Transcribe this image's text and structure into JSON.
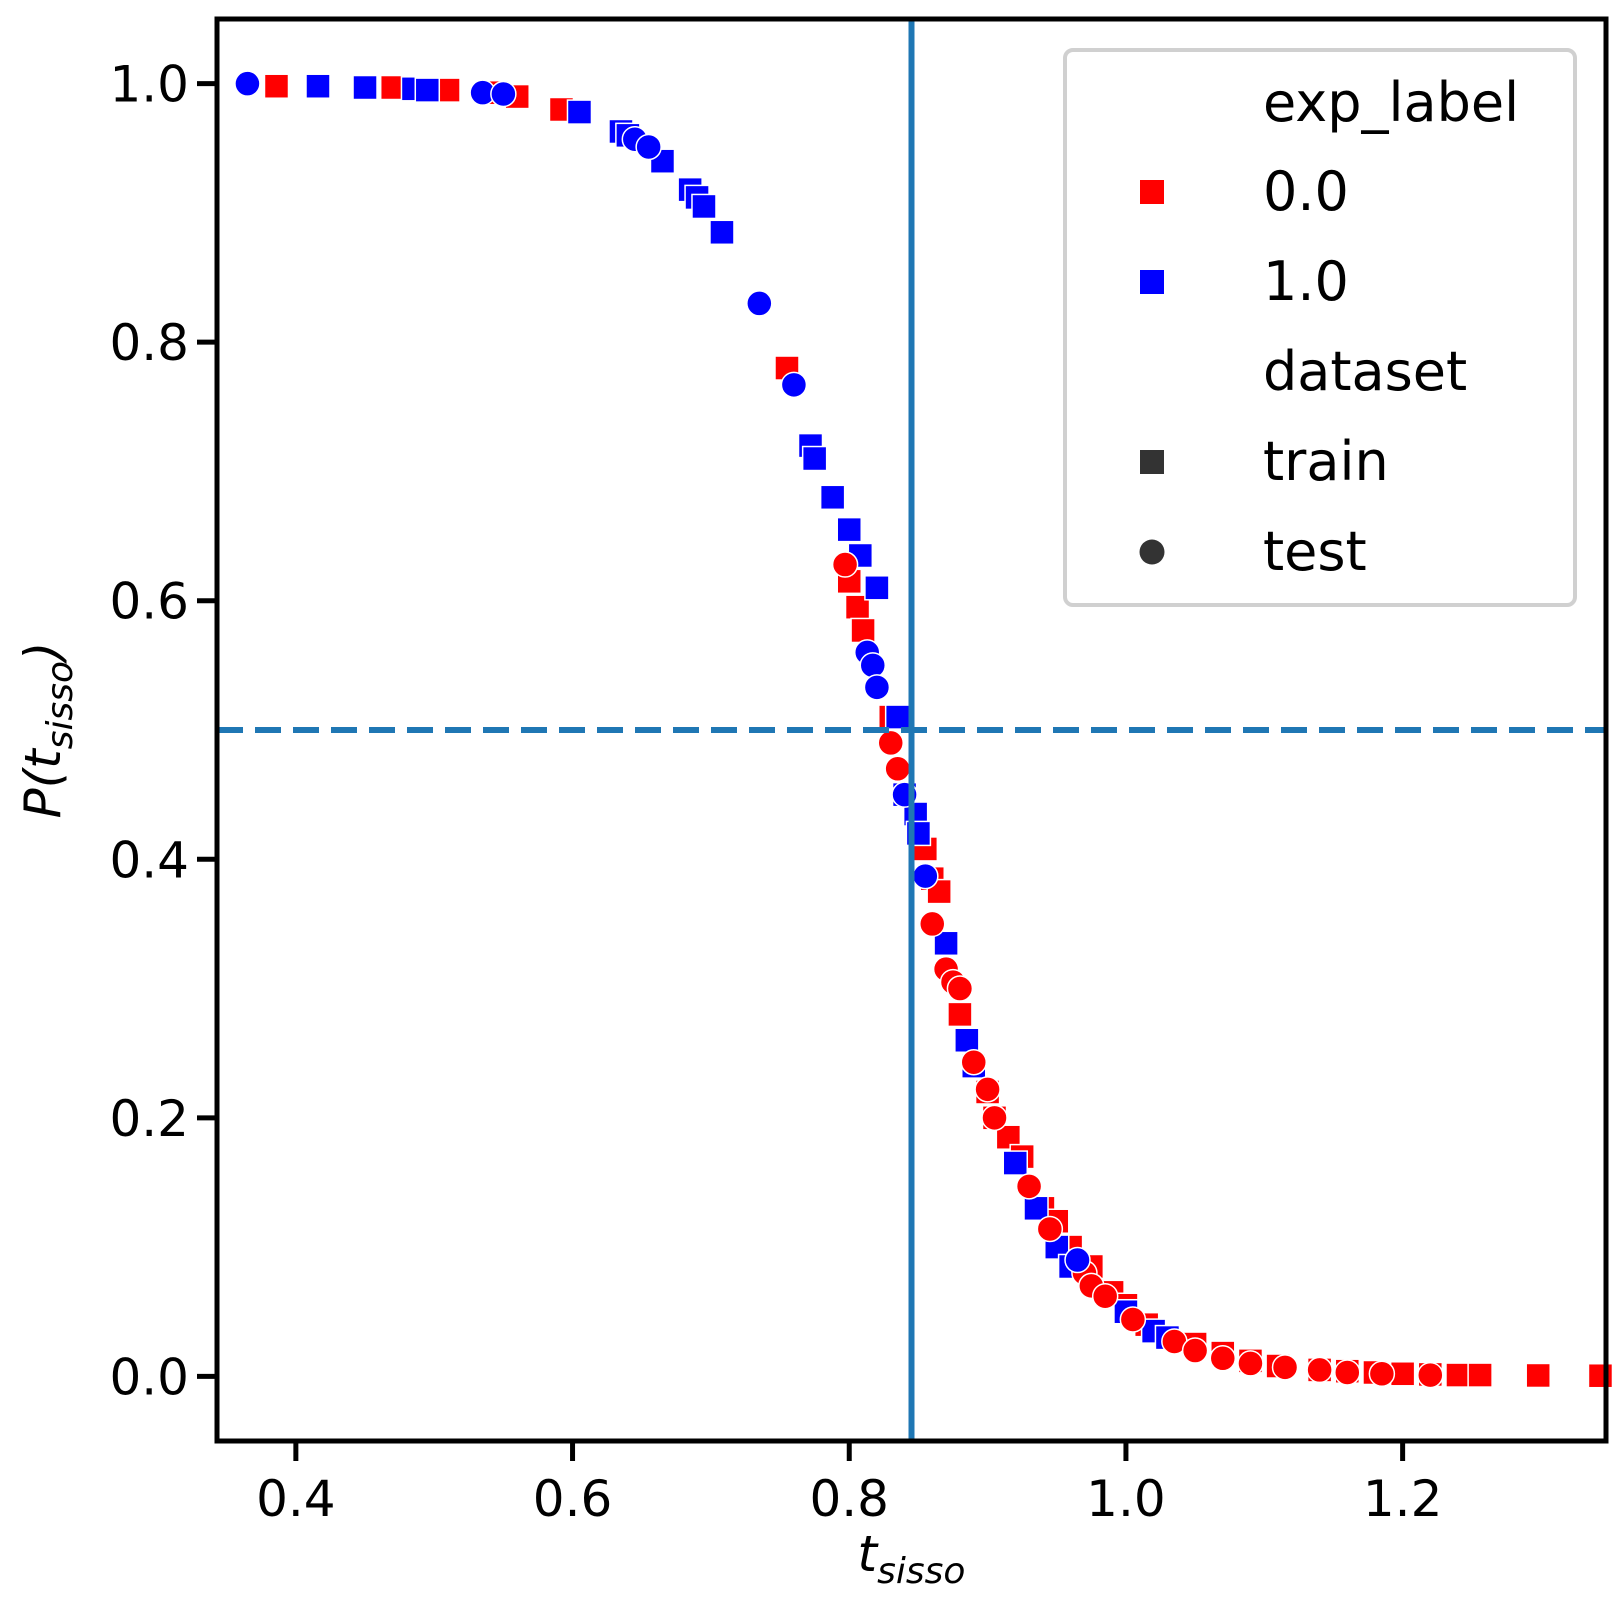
{
  "chart_data": {
    "type": "scatter",
    "xlabel": "t",
    "xlabel_sub": "sisso",
    "ylabel": "P(t",
    "ylabel_sub": "sisso",
    "ylabel_close": ")",
    "xlim": [
      0.343,
      1.347
    ],
    "ylim": [
      -0.05,
      1.05
    ],
    "x_ticks": [
      {
        "value": 0.4,
        "label": "0.4"
      },
      {
        "value": 0.6,
        "label": "0.6"
      },
      {
        "value": 0.8,
        "label": "0.8"
      },
      {
        "value": 1.0,
        "label": "1.0"
      },
      {
        "value": 1.2,
        "label": "1.2"
      }
    ],
    "y_ticks": [
      {
        "value": 0.0,
        "label": "0.0"
      },
      {
        "value": 0.2,
        "label": "0.2"
      },
      {
        "value": 0.4,
        "label": "0.4"
      },
      {
        "value": 0.6,
        "label": "0.6"
      },
      {
        "value": 0.8,
        "label": "0.8"
      },
      {
        "value": 1.0,
        "label": "1.0"
      }
    ],
    "grid": false,
    "vline": {
      "x": 0.845,
      "color": "#1f77b4",
      "style": "solid"
    },
    "hline": {
      "y": 0.5,
      "color": "#1f77b4",
      "style": "dashed"
    },
    "legend": {
      "position": "top-right",
      "hue_title": "exp_label",
      "hue_entries": [
        {
          "label": "0.0",
          "color": "#ff0000"
        },
        {
          "label": "1.0",
          "color": "#0000ff"
        }
      ],
      "style_title": "dataset",
      "style_entries": [
        {
          "label": "train",
          "marker": "square"
        },
        {
          "label": "test",
          "marker": "circle"
        }
      ]
    },
    "series": [
      {
        "exp_label": "0.0",
        "dataset": "train",
        "color": "#ff0000",
        "marker": "square",
        "x": [
          0.386,
          0.47,
          0.51,
          0.545,
          0.56,
          0.592,
          0.755,
          0.8,
          0.806,
          0.81,
          0.83,
          0.855,
          0.86,
          0.865,
          0.88,
          0.885,
          0.9,
          0.905,
          0.915,
          0.925,
          0.94,
          0.95,
          0.96,
          0.975,
          0.99,
          1.0,
          1.015,
          1.03,
          1.05,
          1.07,
          1.09,
          1.11,
          1.14,
          1.16,
          1.18,
          1.2,
          1.22,
          1.24,
          1.256,
          1.298,
          1.343
        ],
        "y": [
          0.998,
          0.997,
          0.995,
          0.993,
          0.99,
          0.98,
          0.78,
          0.615,
          0.595,
          0.577,
          0.51,
          0.408,
          0.385,
          0.375,
          0.28,
          0.26,
          0.22,
          0.2,
          0.185,
          0.17,
          0.13,
          0.12,
          0.1,
          0.085,
          0.065,
          0.055,
          0.04,
          0.03,
          0.025,
          0.018,
          0.012,
          0.008,
          0.005,
          0.004,
          0.003,
          0.002,
          0.0015,
          0.001,
          0.001,
          0.0007,
          0.0005
        ]
      },
      {
        "exp_label": "1.0",
        "dataset": "train",
        "color": "#0000ff",
        "marker": "square",
        "x": [
          0.416,
          0.45,
          0.485,
          0.495,
          0.605,
          0.635,
          0.64,
          0.665,
          0.685,
          0.69,
          0.695,
          0.708,
          0.772,
          0.775,
          0.788,
          0.8,
          0.808,
          0.82,
          0.835,
          0.84,
          0.848,
          0.85,
          0.87,
          0.885,
          0.89,
          0.92,
          0.935,
          0.95,
          0.96,
          1.0,
          1.02,
          1.03
        ],
        "y": [
          0.998,
          0.997,
          0.996,
          0.995,
          0.978,
          0.963,
          0.96,
          0.94,
          0.918,
          0.912,
          0.905,
          0.885,
          0.72,
          0.71,
          0.68,
          0.655,
          0.635,
          0.61,
          0.51,
          0.45,
          0.435,
          0.42,
          0.335,
          0.26,
          0.24,
          0.165,
          0.13,
          0.1,
          0.085,
          0.05,
          0.035,
          0.03
        ]
      },
      {
        "exp_label": "0.0",
        "dataset": "test",
        "color": "#ff0000",
        "marker": "circle",
        "x": [
          0.797,
          0.83,
          0.835,
          0.86,
          0.87,
          0.875,
          0.88,
          0.89,
          0.9,
          0.905,
          0.93,
          0.945,
          0.97,
          0.975,
          0.985,
          1.005,
          1.035,
          1.05,
          1.07,
          1.09,
          1.115,
          1.14,
          1.16,
          1.185,
          1.22
        ],
        "y": [
          0.628,
          0.49,
          0.47,
          0.35,
          0.315,
          0.305,
          0.3,
          0.243,
          0.222,
          0.2,
          0.147,
          0.114,
          0.08,
          0.07,
          0.062,
          0.044,
          0.027,
          0.02,
          0.014,
          0.01,
          0.007,
          0.005,
          0.003,
          0.002,
          0.001
        ]
      },
      {
        "exp_label": "1.0",
        "dataset": "test",
        "color": "#0000ff",
        "marker": "circle",
        "x": [
          0.365,
          0.535,
          0.55,
          0.645,
          0.655,
          0.735,
          0.76,
          0.813,
          0.817,
          0.82,
          0.84,
          0.855,
          0.965
        ],
        "y": [
          1.0,
          0.993,
          0.992,
          0.957,
          0.951,
          0.83,
          0.767,
          0.56,
          0.55,
          0.533,
          0.45,
          0.387,
          0.09
        ]
      }
    ]
  }
}
